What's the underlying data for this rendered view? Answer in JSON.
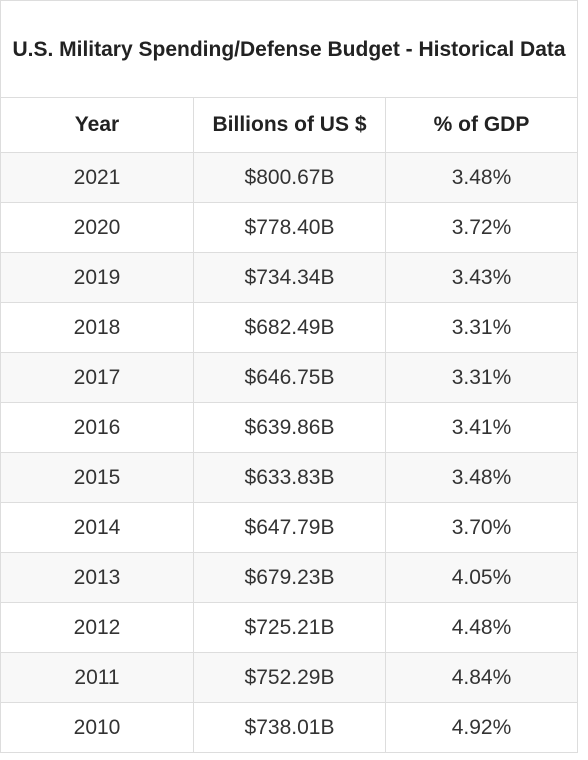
{
  "chart_data": {
    "type": "table",
    "title": "U.S. Military Spending/Defense Budget - Historical Data",
    "columns": [
      "Year",
      "Billions of US $",
      "% of GDP"
    ],
    "rows": [
      [
        "2021",
        "$800.67B",
        "3.48%"
      ],
      [
        "2020",
        "$778.40B",
        "3.72%"
      ],
      [
        "2019",
        "$734.34B",
        "3.43%"
      ],
      [
        "2018",
        "$682.49B",
        "3.31%"
      ],
      [
        "2017",
        "$646.75B",
        "3.31%"
      ],
      [
        "2016",
        "$639.86B",
        "3.41%"
      ],
      [
        "2015",
        "$633.83B",
        "3.48%"
      ],
      [
        "2014",
        "$647.79B",
        "3.70%"
      ],
      [
        "2013",
        "$679.23B",
        "4.05%"
      ],
      [
        "2012",
        "$725.21B",
        "4.48%"
      ],
      [
        "2011",
        "$752.29B",
        "4.84%"
      ],
      [
        "2010",
        "$738.01B",
        "4.92%"
      ]
    ]
  }
}
